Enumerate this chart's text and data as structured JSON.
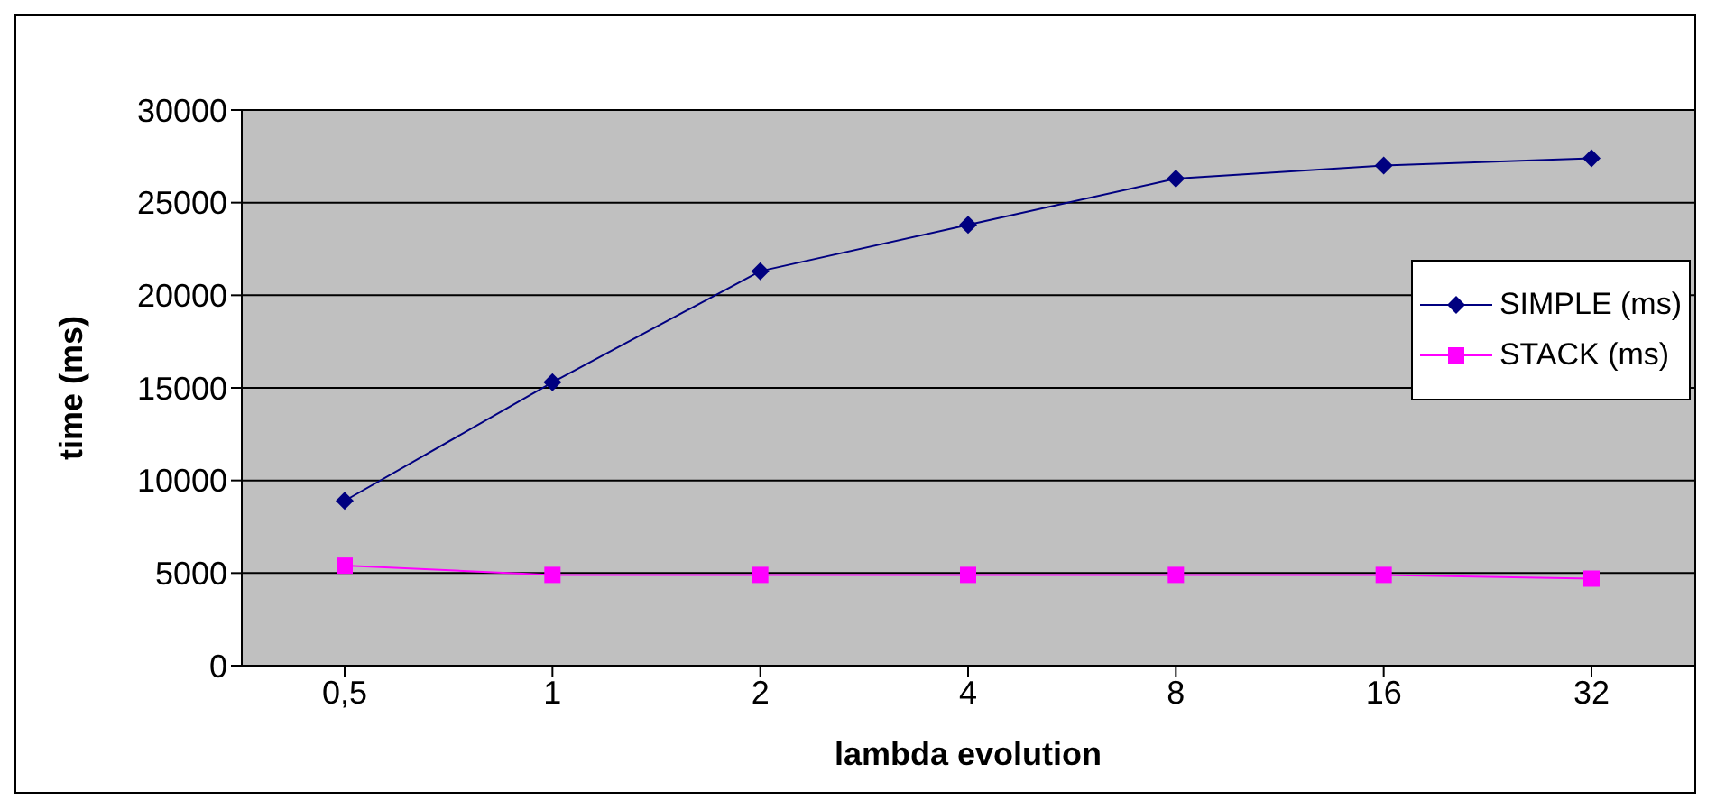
{
  "chart_data": {
    "type": "line",
    "xlabel": "lambda evolution",
    "ylabel": "time (ms)",
    "categories": [
      "0,5",
      "1",
      "2",
      "4",
      "8",
      "16",
      "32"
    ],
    "series": [
      {
        "name": "SIMPLE (ms)",
        "color": "#000080",
        "marker": "diamond",
        "values": [
          8900,
          15300,
          21300,
          23800,
          26300,
          27000,
          27400
        ]
      },
      {
        "name": "STACK (ms)",
        "color": "#ff00ff",
        "marker": "square",
        "values": [
          5400,
          4900,
          4900,
          4900,
          4900,
          4900,
          4700
        ]
      }
    ],
    "ylim": [
      0,
      30000
    ],
    "yticks": [
      0,
      5000,
      10000,
      15000,
      20000,
      25000,
      30000
    ],
    "grid": "y",
    "legend": "right"
  }
}
